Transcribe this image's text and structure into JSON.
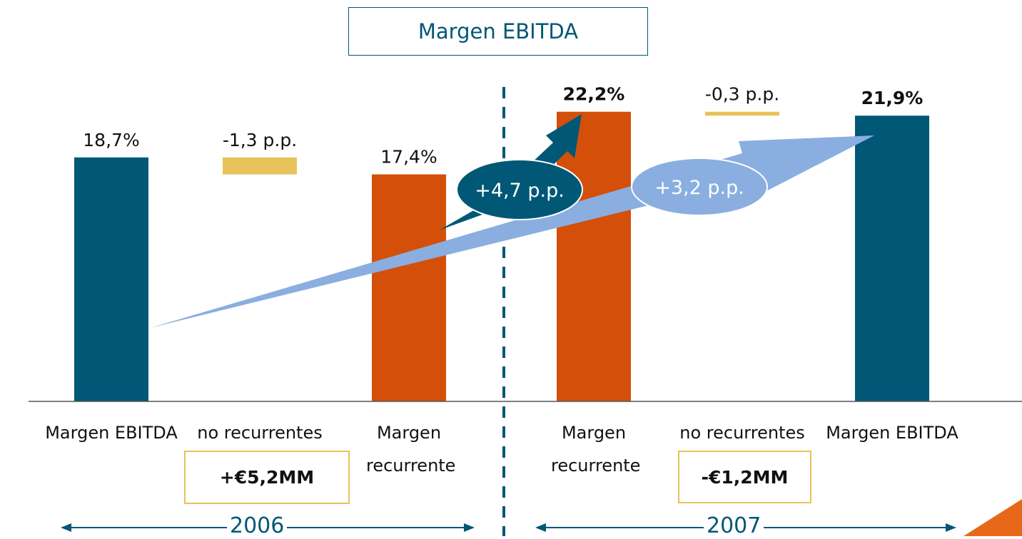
{
  "chart_data": {
    "type": "waterfall",
    "title": "Margen EBITDA",
    "categories": [
      "Margen EBITDA",
      "no recurrentes",
      "Margen recurrente",
      "Margen recurrente",
      "no recurrentes",
      "Margen EBITDA"
    ],
    "values": [
      18.7,
      -1.3,
      17.4,
      22.2,
      -0.3,
      21.9
    ],
    "value_labels": [
      "18,7%",
      "-1,3 p.p.",
      "17,4%",
      "22,2%",
      "-0,3 p.p.",
      "21,9%"
    ],
    "measure": [
      "absolute",
      "relative",
      "absolute",
      "absolute",
      "relative",
      "absolute"
    ],
    "colors": [
      "#005776",
      "#e8c25a",
      "#d4500a",
      "#d4500a",
      "#e8c25a",
      "#005776"
    ],
    "ylim": [
      0,
      30
    ],
    "annotations": {
      "change_2006_2007": "+4,7 p.p.",
      "change_total": "+3,2 p.p.",
      "non_recurring_2006": "+€5,2MM",
      "non_recurring_2007": "-€1,2MM",
      "year_2006": "2006",
      "year_2007": "2007"
    }
  }
}
